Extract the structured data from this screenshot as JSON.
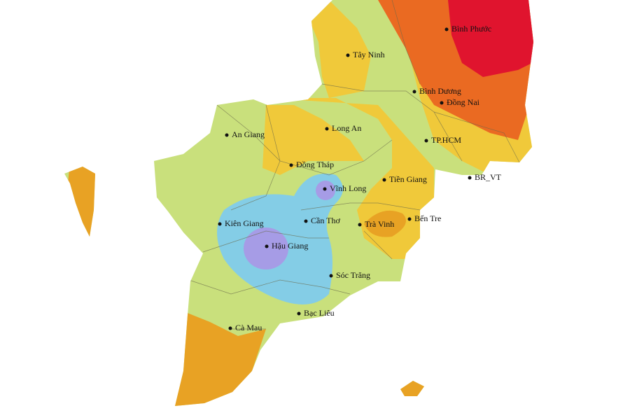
{
  "places": [
    "Bình Phước",
    "Tây Ninh",
    "Bình Dương",
    "Đồng Nai",
    "Long An",
    "An Giang",
    "TP.HCM",
    "Đồng Tháp",
    "Vĩnh Long",
    "Tiền Giang",
    "BR_VT",
    "Kiên Giang",
    "Cần Thơ",
    "Trà Vinh",
    "Bến Tre",
    "Hậu Giang",
    "Sóc Trăng",
    "Bạc Liêu",
    "Cà Mau"
  ]
}
